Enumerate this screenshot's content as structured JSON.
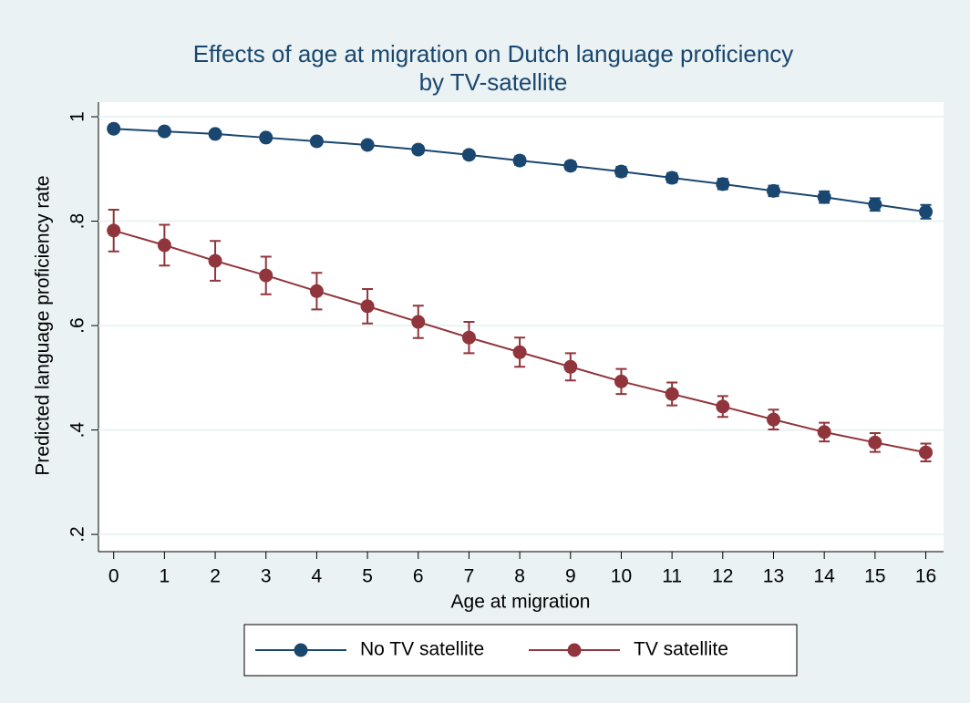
{
  "chart_data": {
    "type": "line",
    "title": [
      "Effects of age at migration on Dutch language proficiency",
      "by TV-satellite"
    ],
    "x_label": "Age at migration",
    "y_label": "Predicted language proficiency rate",
    "x": [
      0,
      1,
      2,
      3,
      4,
      5,
      6,
      7,
      8,
      9,
      10,
      11,
      12,
      13,
      14,
      15,
      16
    ],
    "series": [
      {
        "name": "No TV satellite",
        "color": "#1a476f",
        "values": [
          0.977,
          0.972,
          0.967,
          0.96,
          0.953,
          0.946,
          0.937,
          0.927,
          0.916,
          0.906,
          0.895,
          0.883,
          0.871,
          0.858,
          0.846,
          0.832,
          0.818
        ],
        "errors": [
          0.004,
          0.004,
          0.005,
          0.005,
          0.006,
          0.006,
          0.007,
          0.007,
          0.008,
          0.008,
          0.009,
          0.009,
          0.01,
          0.01,
          0.011,
          0.012,
          0.013
        ]
      },
      {
        "name": "TV satellite",
        "color": "#90353b",
        "values": [
          0.782,
          0.754,
          0.724,
          0.696,
          0.666,
          0.637,
          0.607,
          0.577,
          0.549,
          0.521,
          0.493,
          0.469,
          0.445,
          0.42,
          0.396,
          0.376,
          0.357
        ],
        "errors": [
          0.04,
          0.039,
          0.038,
          0.036,
          0.035,
          0.033,
          0.031,
          0.03,
          0.028,
          0.026,
          0.024,
          0.022,
          0.02,
          0.019,
          0.018,
          0.018,
          0.017
        ]
      }
    ],
    "xlim": [
      -0.3,
      16.35
    ],
    "xticks": [
      0,
      1,
      2,
      3,
      4,
      5,
      6,
      7,
      8,
      9,
      10,
      11,
      12,
      13,
      14,
      15,
      16
    ],
    "ylim": [
      0.167,
      1.028
    ],
    "yticks": [
      {
        "value": 0.2,
        "label": ".2"
      },
      {
        "value": 0.4,
        "label": ".4"
      },
      {
        "value": 0.6,
        "label": ".6"
      },
      {
        "value": 0.8,
        "label": ".8"
      },
      1
    ],
    "grid": true,
    "legend": "bottom"
  }
}
